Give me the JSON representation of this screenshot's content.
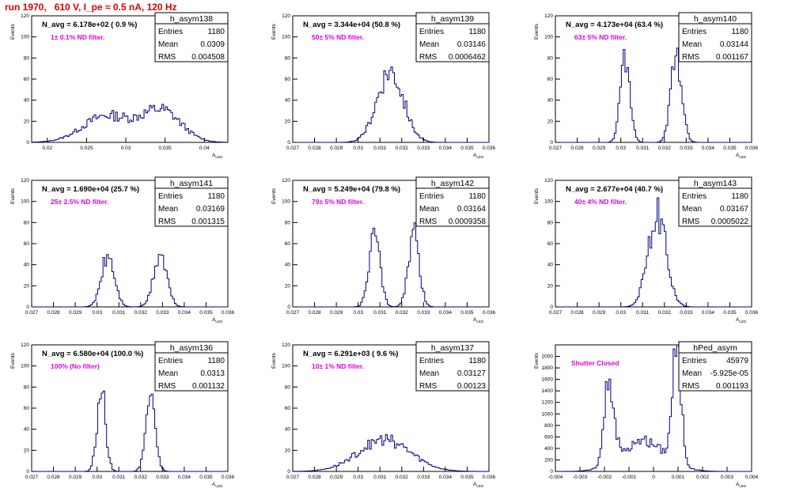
{
  "page_title": "run 1970,   610 V, I_pe ≈ 0.5 nA, 120 Hz",
  "colors": {
    "histogram_line": "#000080",
    "annotation": "#dd00dd",
    "title_text": "#dd0000"
  },
  "chart_data": [
    {
      "type": "histogram",
      "hist_name": "h_asym138",
      "ylabel": "Events",
      "xlabel": "A",
      "xlabel_sub": "LED",
      "xlim": [
        0.018,
        0.043
      ],
      "ylim": [
        0,
        120
      ],
      "xticks": [
        "0.02",
        "0.025",
        "0.03",
        "0.035",
        "0.04"
      ],
      "xtick_values": [
        0.02,
        0.025,
        0.03,
        0.035,
        0.04
      ],
      "yticks": [
        "0",
        "20",
        "40",
        "60",
        "80",
        "100",
        "120"
      ],
      "stats": {
        "entries_label": "Entries",
        "entries": "1180",
        "mean_label": "Mean",
        "mean": "0.0309",
        "rms_label": "RMS",
        "rms": "0.004508"
      },
      "n_avg_label": "N_avg = 6.178e+02 ( 0.9 %)",
      "annotation": "1± 0.1% ND filter.",
      "peaks": [
        {
          "center": 0.0275,
          "height": 25,
          "width": 0.003
        },
        {
          "center": 0.0345,
          "height": 30,
          "width": 0.0025
        }
      ]
    },
    {
      "type": "histogram",
      "hist_name": "h_asym139",
      "ylabel": "Events",
      "xlabel": "A",
      "xlabel_sub": "LED",
      "xlim": [
        0.027,
        0.036
      ],
      "ylim": [
        0,
        120
      ],
      "xticks": [
        "0.027",
        "0.028",
        "0.029",
        "0.03",
        "0.031",
        "0.032",
        "0.033",
        "0.034",
        "0.035",
        "0.036"
      ],
      "xtick_values": [
        0.027,
        0.028,
        0.029,
        0.03,
        0.031,
        0.032,
        0.033,
        0.034,
        0.035,
        0.036
      ],
      "yticks": [
        "0",
        "20",
        "40",
        "60",
        "80",
        "100",
        "120"
      ],
      "stats": {
        "entries_label": "Entries",
        "entries": "1180",
        "mean_label": "Mean",
        "mean": "0.03146",
        "rms_label": "RMS",
        "rms": "0.0006462"
      },
      "n_avg_label": "N_avg = 3.344e+04 (50.8 %)",
      "annotation": "50± 5% ND filter.",
      "peaks": [
        {
          "center": 0.03147,
          "height": 68,
          "width": 0.0006
        }
      ]
    },
    {
      "type": "histogram",
      "hist_name": "h_asym140",
      "ylabel": "Events",
      "xlabel": "A",
      "xlabel_sub": "LED",
      "xlim": [
        0.027,
        0.036
      ],
      "ylim": [
        0,
        120
      ],
      "xticks": [
        "0.027",
        "0.028",
        "0.029",
        "0.03",
        "0.031",
        "0.032",
        "0.033",
        "0.034",
        "0.035",
        "0.036"
      ],
      "xtick_values": [
        0.027,
        0.028,
        0.029,
        0.03,
        0.031,
        0.032,
        0.033,
        0.034,
        0.035,
        0.036
      ],
      "yticks": [
        "0",
        "20",
        "40",
        "60",
        "80",
        "100",
        "120"
      ],
      "stats": {
        "entries_label": "Entries",
        "entries": "1180",
        "mean_label": "Mean",
        "mean": "0.03144",
        "rms_label": "RMS",
        "rms": "0.001167"
      },
      "n_avg_label": "N_avg = 4.173e+04 (63.4 %)",
      "annotation": "63± 5% ND filter.",
      "peaks": [
        {
          "center": 0.0302,
          "height": 80,
          "width": 0.00022
        },
        {
          "center": 0.03255,
          "height": 82,
          "width": 0.00025
        }
      ]
    },
    {
      "type": "histogram",
      "hist_name": "h_asym141",
      "ylabel": "Events",
      "xlabel": "A",
      "xlabel_sub": "LED",
      "xlim": [
        0.027,
        0.036
      ],
      "ylim": [
        0,
        120
      ],
      "xticks": [
        "0.027",
        "0.028",
        "0.029",
        "0.03",
        "0.031",
        "0.032",
        "0.033",
        "0.034",
        "0.035",
        "0.036"
      ],
      "xtick_values": [
        0.027,
        0.028,
        0.029,
        0.03,
        0.031,
        0.032,
        0.033,
        0.034,
        0.035,
        0.036
      ],
      "yticks": [
        "0",
        "20",
        "40",
        "60",
        "80",
        "100",
        "120"
      ],
      "stats": {
        "entries_label": "Entries",
        "entries": "1180",
        "mean_label": "Mean",
        "mean": "0.03169",
        "rms_label": "RMS",
        "rms": "0.001315"
      },
      "n_avg_label": "N_avg = 1.690e+04 (25.7 %)",
      "annotation": "25± 2.5% ND filter.",
      "peaks": [
        {
          "center": 0.0305,
          "height": 48,
          "width": 0.0003
        },
        {
          "center": 0.0329,
          "height": 50,
          "width": 0.0003
        }
      ]
    },
    {
      "type": "histogram",
      "hist_name": "h_asym142",
      "ylabel": "Events",
      "xlabel": "A",
      "xlabel_sub": "LED",
      "xlim": [
        0.027,
        0.036
      ],
      "ylim": [
        0,
        120
      ],
      "xticks": [
        "0.027",
        "0.028",
        "0.029",
        "0.03",
        "0.031",
        "0.032",
        "0.033",
        "0.034",
        "0.035",
        "0.036"
      ],
      "xtick_values": [
        0.027,
        0.028,
        0.029,
        0.03,
        0.031,
        0.032,
        0.033,
        0.034,
        0.035,
        0.036
      ],
      "yticks": [
        "0",
        "20",
        "40",
        "60",
        "80",
        "100",
        "120"
      ],
      "stats": {
        "entries_label": "Entries",
        "entries": "1180",
        "mean_label": "Mean",
        "mean": "0.03164",
        "rms_label": "RMS",
        "rms": "0.0009358"
      },
      "n_avg_label": "N_avg = 5.249e+04 (79.8 %)",
      "annotation": "79± 5% ND filter.",
      "peaks": [
        {
          "center": 0.03075,
          "height": 68,
          "width": 0.00025
        },
        {
          "center": 0.03255,
          "height": 68,
          "width": 0.00025
        }
      ]
    },
    {
      "type": "histogram",
      "hist_name": "h_asym143",
      "ylabel": "Events",
      "xlabel": "A",
      "xlabel_sub": "LED",
      "xlim": [
        0.027,
        0.036
      ],
      "ylim": [
        0,
        120
      ],
      "xticks": [
        "0.027",
        "0.028",
        "0.029",
        "0.03",
        "0.031",
        "0.032",
        "0.033",
        "0.034",
        "0.035",
        "0.036"
      ],
      "xtick_values": [
        0.027,
        0.028,
        0.029,
        0.03,
        0.031,
        0.032,
        0.033,
        0.034,
        0.035,
        0.036
      ],
      "yticks": [
        "0",
        "20",
        "40",
        "60",
        "80",
        "100",
        "120"
      ],
      "stats": {
        "entries_label": "Entries",
        "entries": "1180",
        "mean_label": "Mean",
        "mean": "0.03167",
        "rms_label": "RMS",
        "rms": "0.0005022"
      },
      "n_avg_label": "N_avg = 2.677e+04 (40.7 %)",
      "annotation": "40± 4% ND filter.",
      "peaks": [
        {
          "center": 0.03167,
          "height": 88,
          "width": 0.00042
        }
      ]
    },
    {
      "type": "histogram",
      "hist_name": "h_asym136",
      "ylabel": "Events",
      "xlabel": "A",
      "xlabel_sub": "LED",
      "xlim": [
        0.027,
        0.036
      ],
      "ylim": [
        0,
        120
      ],
      "xticks": [
        "0.027",
        "0.028",
        "0.029",
        "0.03",
        "0.031",
        "0.032",
        "0.033",
        "0.034",
        "0.035",
        "0.036"
      ],
      "xtick_values": [
        0.027,
        0.028,
        0.029,
        0.03,
        0.031,
        0.032,
        0.033,
        0.034,
        0.035,
        0.036
      ],
      "yticks": [
        "0",
        "20",
        "40",
        "60",
        "80",
        "100",
        "120"
      ],
      "stats": {
        "entries_label": "Entries",
        "entries": "1180",
        "mean_label": "Mean",
        "mean": "0.0313",
        "rms_label": "RMS",
        "rms": "0.001132"
      },
      "n_avg_label": "N_avg = 6.580e+04 (100.0 %)",
      "annotation": "100% (No filter)",
      "peaks": [
        {
          "center": 0.0302,
          "height": 75,
          "width": 0.0002
        },
        {
          "center": 0.03245,
          "height": 70,
          "width": 0.00022
        }
      ]
    },
    {
      "type": "histogram",
      "hist_name": "h_asym137",
      "ylabel": "Events",
      "xlabel": "A",
      "xlabel_sub": "LED",
      "xlim": [
        0.027,
        0.036
      ],
      "ylim": [
        0,
        120
      ],
      "xticks": [
        "0.027",
        "0.028",
        "0.029",
        "0.03",
        "0.031",
        "0.032",
        "0.033",
        "0.034",
        "0.035",
        "0.036"
      ],
      "xtick_values": [
        0.027,
        0.028,
        0.029,
        0.03,
        0.031,
        0.032,
        0.033,
        0.034,
        0.035,
        0.036
      ],
      "yticks": [
        "0",
        "20",
        "40",
        "60",
        "80",
        "100",
        "120"
      ],
      "stats": {
        "entries_label": "Entries",
        "entries": "1180",
        "mean_label": "Mean",
        "mean": "0.03127",
        "rms_label": "RMS",
        "rms": "0.00123"
      },
      "n_avg_label": "N_avg = 6.291e+03 ( 9.6 %)",
      "annotation": "10± 1% ND filter.",
      "peaks": [
        {
          "center": 0.0312,
          "height": 30,
          "width": 0.0012
        }
      ]
    },
    {
      "type": "histogram",
      "hist_name": "hPed_asym",
      "ylabel": "Events",
      "xlabel": "A",
      "xlabel_sub": "LED",
      "xlim": [
        -0.004,
        0.004
      ],
      "ylim": [
        0,
        2200
      ],
      "xticks": [
        "-0.004",
        "-0.003",
        "-0.002",
        "-0.001",
        "0",
        "0.001",
        "0.002",
        "0.003",
        "0.004"
      ],
      "xtick_values": [
        -0.004,
        -0.003,
        -0.002,
        -0.001,
        0,
        0.001,
        0.002,
        0.003,
        0.004
      ],
      "yticks": [
        "0",
        "200",
        "400",
        "600",
        "800",
        "1000",
        "1200",
        "1400",
        "1600",
        "1800",
        "2000"
      ],
      "stats": {
        "entries_label": "Entries",
        "entries": "45979",
        "mean_label": "Mean",
        "mean": "-5.925e-05",
        "rms_label": "RMS",
        "rms": "0.001193"
      },
      "n_avg_label": "",
      "annotation": "Shutter Closed",
      "peaks": [
        {
          "center": -0.0018,
          "height": 1450,
          "width": 0.0002
        },
        {
          "center": 0.00095,
          "height": 2050,
          "width": 0.00018
        },
        {
          "center": -0.0004,
          "height": 520,
          "width": 0.0009
        }
      ]
    }
  ]
}
